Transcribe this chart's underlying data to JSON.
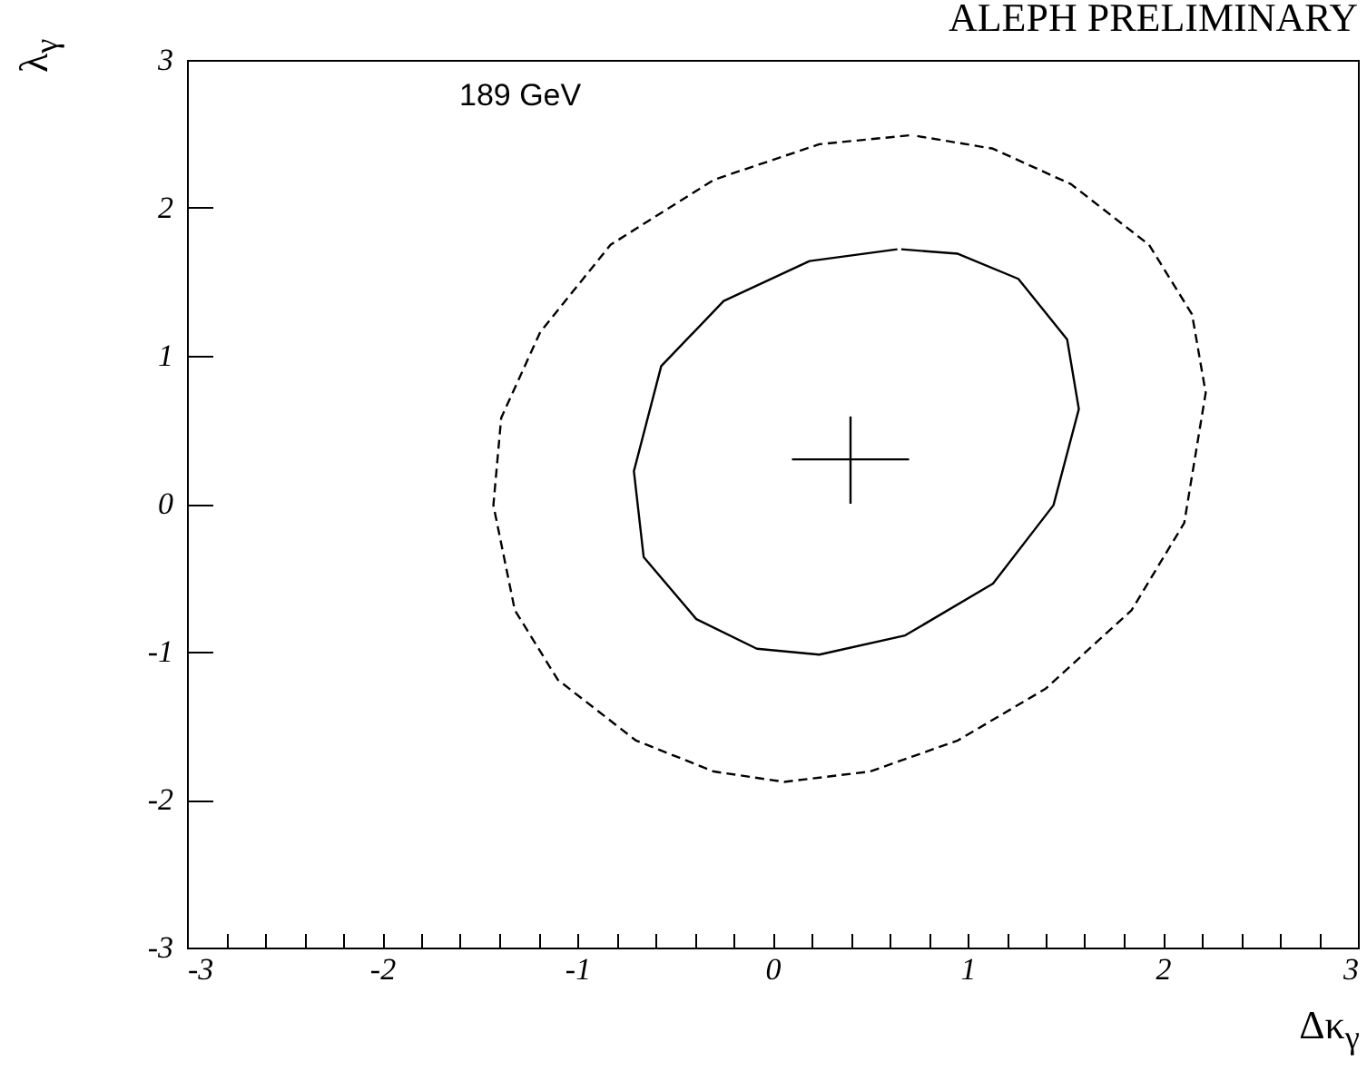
{
  "chart_data": {
    "type": "line",
    "title": "ALEPH PRELIMINARY",
    "xlabel": "Δκ$_{γ}$",
    "ylabel": "λ$_{γ}$",
    "annotations": [
      "189 GeV"
    ],
    "xlim": [
      -3,
      3
    ],
    "ylim": [
      -3,
      3
    ],
    "xticks": [
      -3,
      {
        "value": -2.8,
        "label": null
      },
      {
        "value": -2.6,
        "label": null
      },
      {
        "value": -2.4,
        "label": null
      },
      {
        "value": -2.2,
        "label": null
      },
      -2,
      {
        "value": -1.8,
        "label": null
      },
      {
        "value": -1.6,
        "label": null
      },
      {
        "value": -1.4,
        "label": null
      },
      {
        "value": -1.2,
        "label": null
      },
      -1,
      {
        "value": -0.8,
        "label": null
      },
      {
        "value": -0.6,
        "label": null
      },
      {
        "value": -0.4,
        "label": null
      },
      {
        "value": -0.2,
        "label": null
      },
      0,
      {
        "value": 0.2,
        "label": null
      },
      {
        "value": 0.4,
        "label": null
      },
      {
        "value": 0.6,
        "label": null
      },
      {
        "value": 0.8,
        "label": null
      },
      1,
      {
        "value": 1.2,
        "label": null
      },
      {
        "value": 1.4,
        "label": null
      },
      {
        "value": 1.6,
        "label": null
      },
      {
        "value": 1.8,
        "label": null
      },
      2,
      {
        "value": 2.2,
        "label": null
      },
      {
        "value": 2.4,
        "label": null
      },
      {
        "value": 2.6,
        "label": null
      },
      {
        "value": 2.8,
        "label": null
      },
      3
    ],
    "yticks": [
      -3,
      -2,
      -1,
      0,
      1,
      2,
      3
    ],
    "grid": false,
    "legend": false,
    "marker": "none",
    "series": [
      {
        "color": "#000000",
        "line_style": "solid",
        "x": [
          0.64,
          0.19,
          -0.25,
          -0.57,
          -0.71,
          -0.66,
          -0.39,
          -0.08,
          0.24,
          0.68,
          1.13,
          1.44,
          1.57,
          1.51,
          1.26,
          0.95,
          0.66
        ],
        "values": [
          1.72,
          1.64,
          1.37,
          0.93,
          0.22,
          -0.36,
          -0.78,
          -0.98,
          -1.02,
          -0.89,
          -0.54,
          -0.01,
          0.64,
          1.11,
          1.52,
          1.69,
          1.72
        ]
      },
      {
        "color": "#000000",
        "line_style": "dashed",
        "x": [
          0.7,
          0.24,
          -0.3,
          -0.83,
          -1.19,
          -1.39,
          -1.43,
          -1.32,
          -1.1,
          -0.7,
          -0.3,
          0.06,
          0.5,
          0.95,
          1.4,
          1.84,
          2.11,
          2.22,
          2.15,
          1.93,
          1.53,
          1.13,
          0.72
        ],
        "values": [
          2.49,
          2.43,
          2.19,
          1.75,
          1.16,
          0.58,
          -0.01,
          -0.72,
          -1.19,
          -1.6,
          -1.81,
          -1.88,
          -1.81,
          -1.6,
          -1.25,
          -0.72,
          -0.13,
          0.75,
          1.28,
          1.75,
          2.16,
          2.4,
          2.49
        ]
      },
      {
        "color": "#000000",
        "line_style": "solid",
        "x": [
          0.1,
          0.7
        ],
        "values": [
          0.3,
          0.3
        ]
      },
      {
        "color": "#000000",
        "line_style": "solid",
        "x": [
          0.4,
          0.4
        ],
        "values": [
          0.59,
          0.0
        ]
      }
    ]
  }
}
